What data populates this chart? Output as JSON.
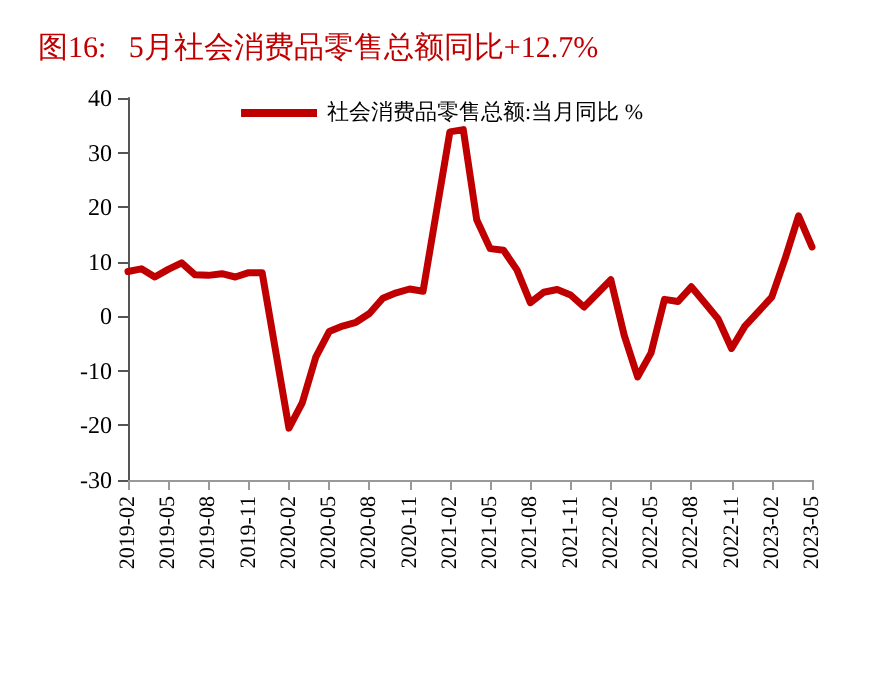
{
  "chart_data": {
    "type": "line",
    "title": "图16:   5月社会消费品零售总额同比+12.7%",
    "categories": [
      "2019-02",
      null,
      null,
      "2019-05",
      null,
      null,
      "2019-08",
      null,
      null,
      "2019-11",
      null,
      null,
      "2020-02",
      null,
      null,
      "2020-05",
      null,
      null,
      "2020-08",
      null,
      null,
      "2020-11",
      null,
      null,
      "2021-02",
      null,
      null,
      "2021-05",
      null,
      null,
      "2021-08",
      null,
      null,
      "2021-11",
      null,
      null,
      "2022-02",
      null,
      null,
      "2022-05",
      null,
      null,
      "2022-08",
      null,
      null,
      "2022-11",
      null,
      null,
      "2023-02",
      null,
      null,
      "2023-05"
    ],
    "series": [
      {
        "name": "社会消费品零售总额:当月同比 %",
        "color": "#c00000",
        "values": [
          8.2,
          8.7,
          7.2,
          8.6,
          9.8,
          7.6,
          7.5,
          7.8,
          7.2,
          8.0,
          8.0,
          null,
          -20.5,
          -15.8,
          -7.5,
          -2.8,
          -1.8,
          -1.1,
          0.5,
          3.3,
          4.3,
          5.0,
          4.6,
          null,
          33.8,
          34.2,
          17.7,
          12.4,
          12.1,
          8.5,
          2.5,
          4.4,
          4.9,
          3.9,
          1.7,
          null,
          6.7,
          -3.5,
          -11.1,
          -6.7,
          3.1,
          2.7,
          5.4,
          2.5,
          -0.5,
          -5.9,
          -1.8,
          null,
          3.5,
          10.6,
          18.4,
          12.7
        ]
      }
    ],
    "ylim": [
      -30,
      40
    ],
    "yticks": [
      -30,
      -20,
      -10,
      0,
      10,
      20,
      30,
      40
    ],
    "grid": false,
    "legend": "top",
    "marker": "none",
    "line_style": "solid"
  }
}
